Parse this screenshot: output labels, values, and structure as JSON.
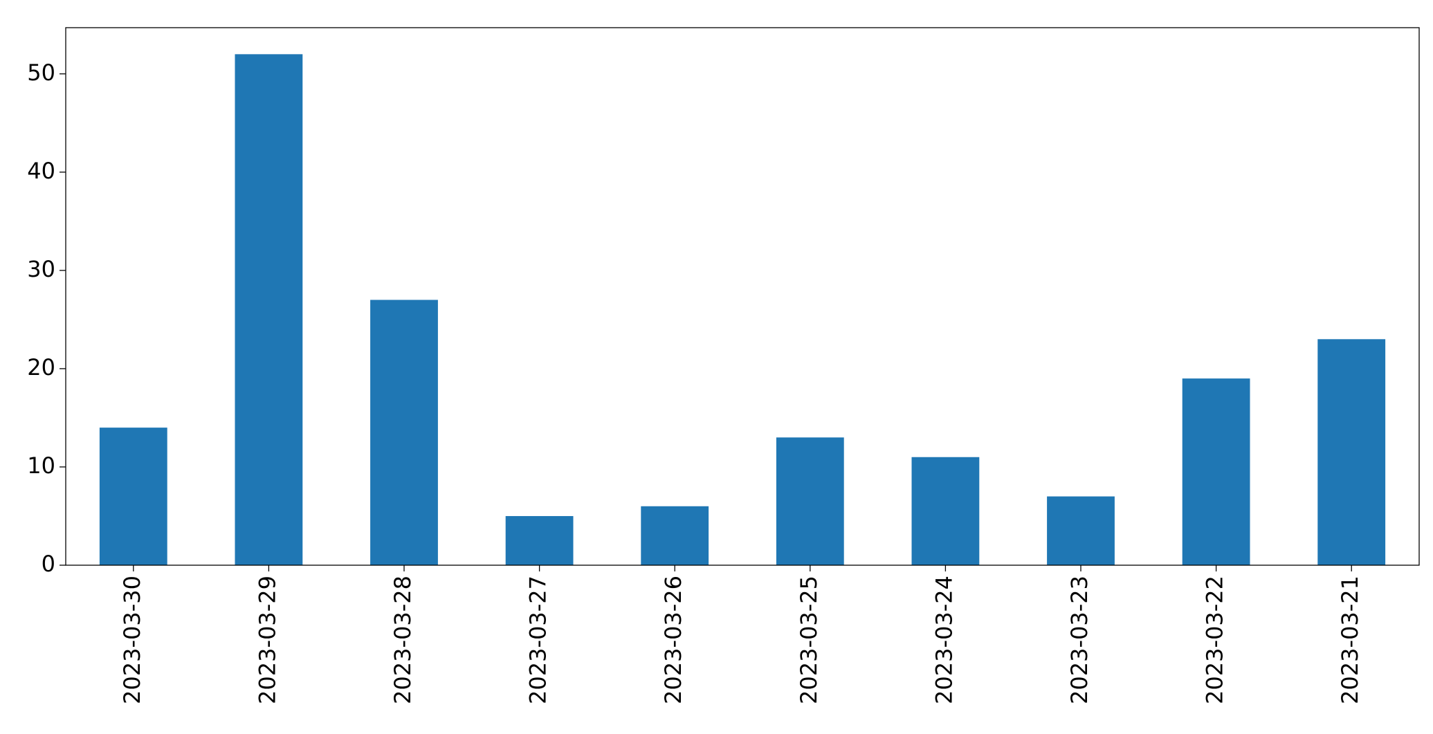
{
  "chart_data": {
    "type": "bar",
    "categories": [
      "2023-03-30",
      "2023-03-29",
      "2023-03-28",
      "2023-03-27",
      "2023-03-26",
      "2023-03-25",
      "2023-03-24",
      "2023-03-23",
      "2023-03-22",
      "2023-03-21"
    ],
    "values": [
      14,
      52,
      27,
      5,
      6,
      13,
      11,
      7,
      19,
      23
    ],
    "color": "#1f77b4",
    "ylim": [
      0,
      54.7
    ],
    "yticks": [
      0,
      10,
      20,
      30,
      40,
      50
    ],
    "grid": false
  }
}
